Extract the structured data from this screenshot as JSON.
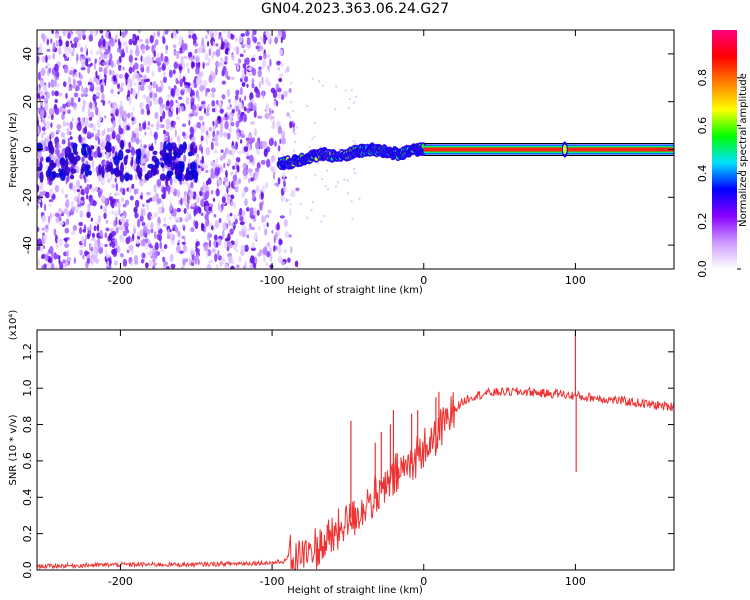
{
  "title": "GN04.2023.363.06.24.G27",
  "chart_data": [
    {
      "type": "heatmap",
      "xlabel": "Height of straight line (km)",
      "ylabel": "Frequency (Hz)",
      "xlim": [
        -255,
        165
      ],
      "ylim": [
        -50,
        50
      ],
      "xticks": [
        -200,
        -100,
        0,
        100
      ],
      "yticks": [
        -40,
        -20,
        0,
        20,
        40
      ],
      "colorbar": {
        "label": "Normalized spectral amplitude",
        "range": [
          0,
          1
        ],
        "ticks": [
          "0.0",
          "0.2",
          "0.4",
          "0.6",
          "0.8"
        ],
        "colors": [
          "#ffffff",
          "#cc99ff",
          "#8800ff",
          "#0000ff",
          "#00e0ff",
          "#00ff00",
          "#ffff00",
          "#ff8000",
          "#ff0000",
          "#ff0080"
        ]
      },
      "noise_region": {
        "x": [
          -255,
          -88
        ],
        "y": [
          -50,
          50
        ]
      },
      "carrier": {
        "points": [
          {
            "x": -95,
            "y": -6
          },
          {
            "x": -85,
            "y": -5
          },
          {
            "x": -75,
            "y": -3
          },
          {
            "x": -65,
            "y": -2
          },
          {
            "x": -55,
            "y": -3
          },
          {
            "x": -45,
            "y": -1
          },
          {
            "x": -35,
            "y": 0
          },
          {
            "x": -25,
            "y": -1
          },
          {
            "x": -15,
            "y": -2
          },
          {
            "x": -5,
            "y": 0
          },
          {
            "x": 0,
            "y": 0
          },
          {
            "x": 165,
            "y": 0
          }
        ]
      }
    },
    {
      "type": "line",
      "xlabel": "Height of straight line (km)",
      "ylabel": "SNR (10 * v/v)",
      "scale_label": "(x10⁴)",
      "xlim": [
        -255,
        165
      ],
      "ylim": [
        0,
        1.32
      ],
      "xticks": [
        -200,
        -100,
        0,
        100
      ],
      "yticks": [
        "0.0",
        "0.2",
        "0.4",
        "0.6",
        "0.8",
        "1.0",
        "1.2"
      ],
      "line_color": "#ee3333",
      "series": [
        {
          "x": [
            -255,
            -200,
            -150,
            -100,
            -90,
            -80,
            -70,
            -60,
            -55,
            -50,
            -45,
            -40,
            -35,
            -30,
            -25,
            -20,
            -15,
            -10,
            -5,
            0,
            5,
            10,
            15,
            20,
            25,
            30,
            40,
            50,
            60,
            70,
            80,
            90,
            95,
            100,
            105,
            110,
            120,
            130,
            140,
            150,
            160,
            165
          ],
          "values": [
            0.02,
            0.03,
            0.03,
            0.04,
            0.05,
            0.08,
            0.12,
            0.18,
            0.22,
            0.28,
            0.3,
            0.34,
            0.38,
            0.4,
            0.45,
            0.5,
            0.54,
            0.58,
            0.62,
            0.66,
            0.7,
            0.76,
            0.82,
            0.88,
            0.92,
            0.95,
            0.97,
            0.98,
            0.98,
            0.98,
            0.97,
            0.97,
            0.96,
            0.96,
            0.95,
            0.95,
            0.94,
            0.93,
            0.92,
            0.91,
            0.9,
            0.9
          ]
        }
      ],
      "spikes": [
        {
          "x": -63,
          "value": 0.25
        },
        {
          "x": -48,
          "value": 0.82
        },
        {
          "x": -45,
          "value": 0.3
        },
        {
          "x": -32,
          "value": 0.7
        },
        {
          "x": -28,
          "value": 0.76
        },
        {
          "x": -22,
          "value": 0.8
        },
        {
          "x": -20,
          "value": 0.88
        },
        {
          "x": -15,
          "value": 0.62
        },
        {
          "x": -8,
          "value": 0.86
        },
        {
          "x": -4,
          "value": 0.88
        },
        {
          "x": 8,
          "value": 0.95
        },
        {
          "x": 10,
          "value": 0.98
        },
        {
          "x": 100,
          "value": 1.3
        },
        {
          "x": 100.5,
          "value": 0.54
        }
      ]
    }
  ]
}
